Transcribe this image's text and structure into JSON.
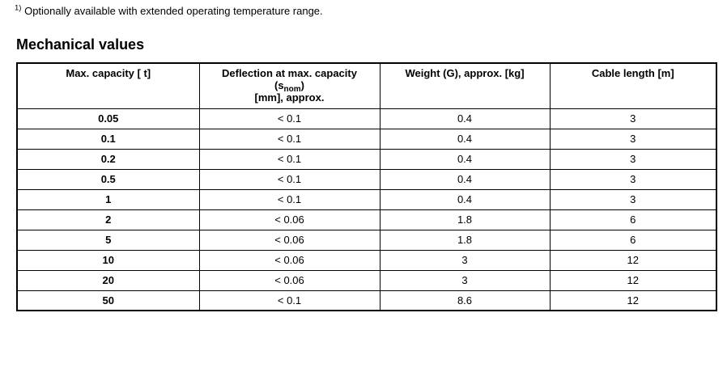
{
  "page": {
    "footnote": {
      "marker": "1)",
      "text": "Optionally available with extended operating temperature range."
    },
    "section_title": "Mechanical values"
  },
  "colors": {
    "text": "#000000",
    "border": "#000000",
    "background": "#ffffff"
  },
  "table": {
    "headers": {
      "max_capacity": "Max. capacity [ t]",
      "deflection": {
        "line1": "Deflection at max. capacity",
        "line2_pre": "(s",
        "line2_sub": "nom",
        "line2_post": ")",
        "line3": "[mm], approx."
      },
      "weight": "Weight (G), approx. [kg]",
      "cable_length": "Cable length [m]"
    },
    "columns": [
      "max_capacity",
      "deflection",
      "weight",
      "cable_length"
    ],
    "rows": [
      {
        "max_capacity": "0.05",
        "deflection": "< 0.1",
        "weight": "0.4",
        "cable_length": "3"
      },
      {
        "max_capacity": "0.1",
        "deflection": "< 0.1",
        "weight": "0.4",
        "cable_length": "3"
      },
      {
        "max_capacity": "0.2",
        "deflection": "< 0.1",
        "weight": "0.4",
        "cable_length": "3"
      },
      {
        "max_capacity": "0.5",
        "deflection": "< 0.1",
        "weight": "0.4",
        "cable_length": "3"
      },
      {
        "max_capacity": "1",
        "deflection": "< 0.1",
        "weight": "0.4",
        "cable_length": "3"
      },
      {
        "max_capacity": "2",
        "deflection": "< 0.06",
        "weight": "1.8",
        "cable_length": "6"
      },
      {
        "max_capacity": "5",
        "deflection": "< 0.06",
        "weight": "1.8",
        "cable_length": "6"
      },
      {
        "max_capacity": "10",
        "deflection": "< 0.06",
        "weight": "3",
        "cable_length": "12"
      },
      {
        "max_capacity": "20",
        "deflection": "< 0.06",
        "weight": "3",
        "cable_length": "12"
      },
      {
        "max_capacity": "50",
        "deflection": "< 0.1",
        "weight": "8.6",
        "cable_length": "12"
      }
    ]
  }
}
